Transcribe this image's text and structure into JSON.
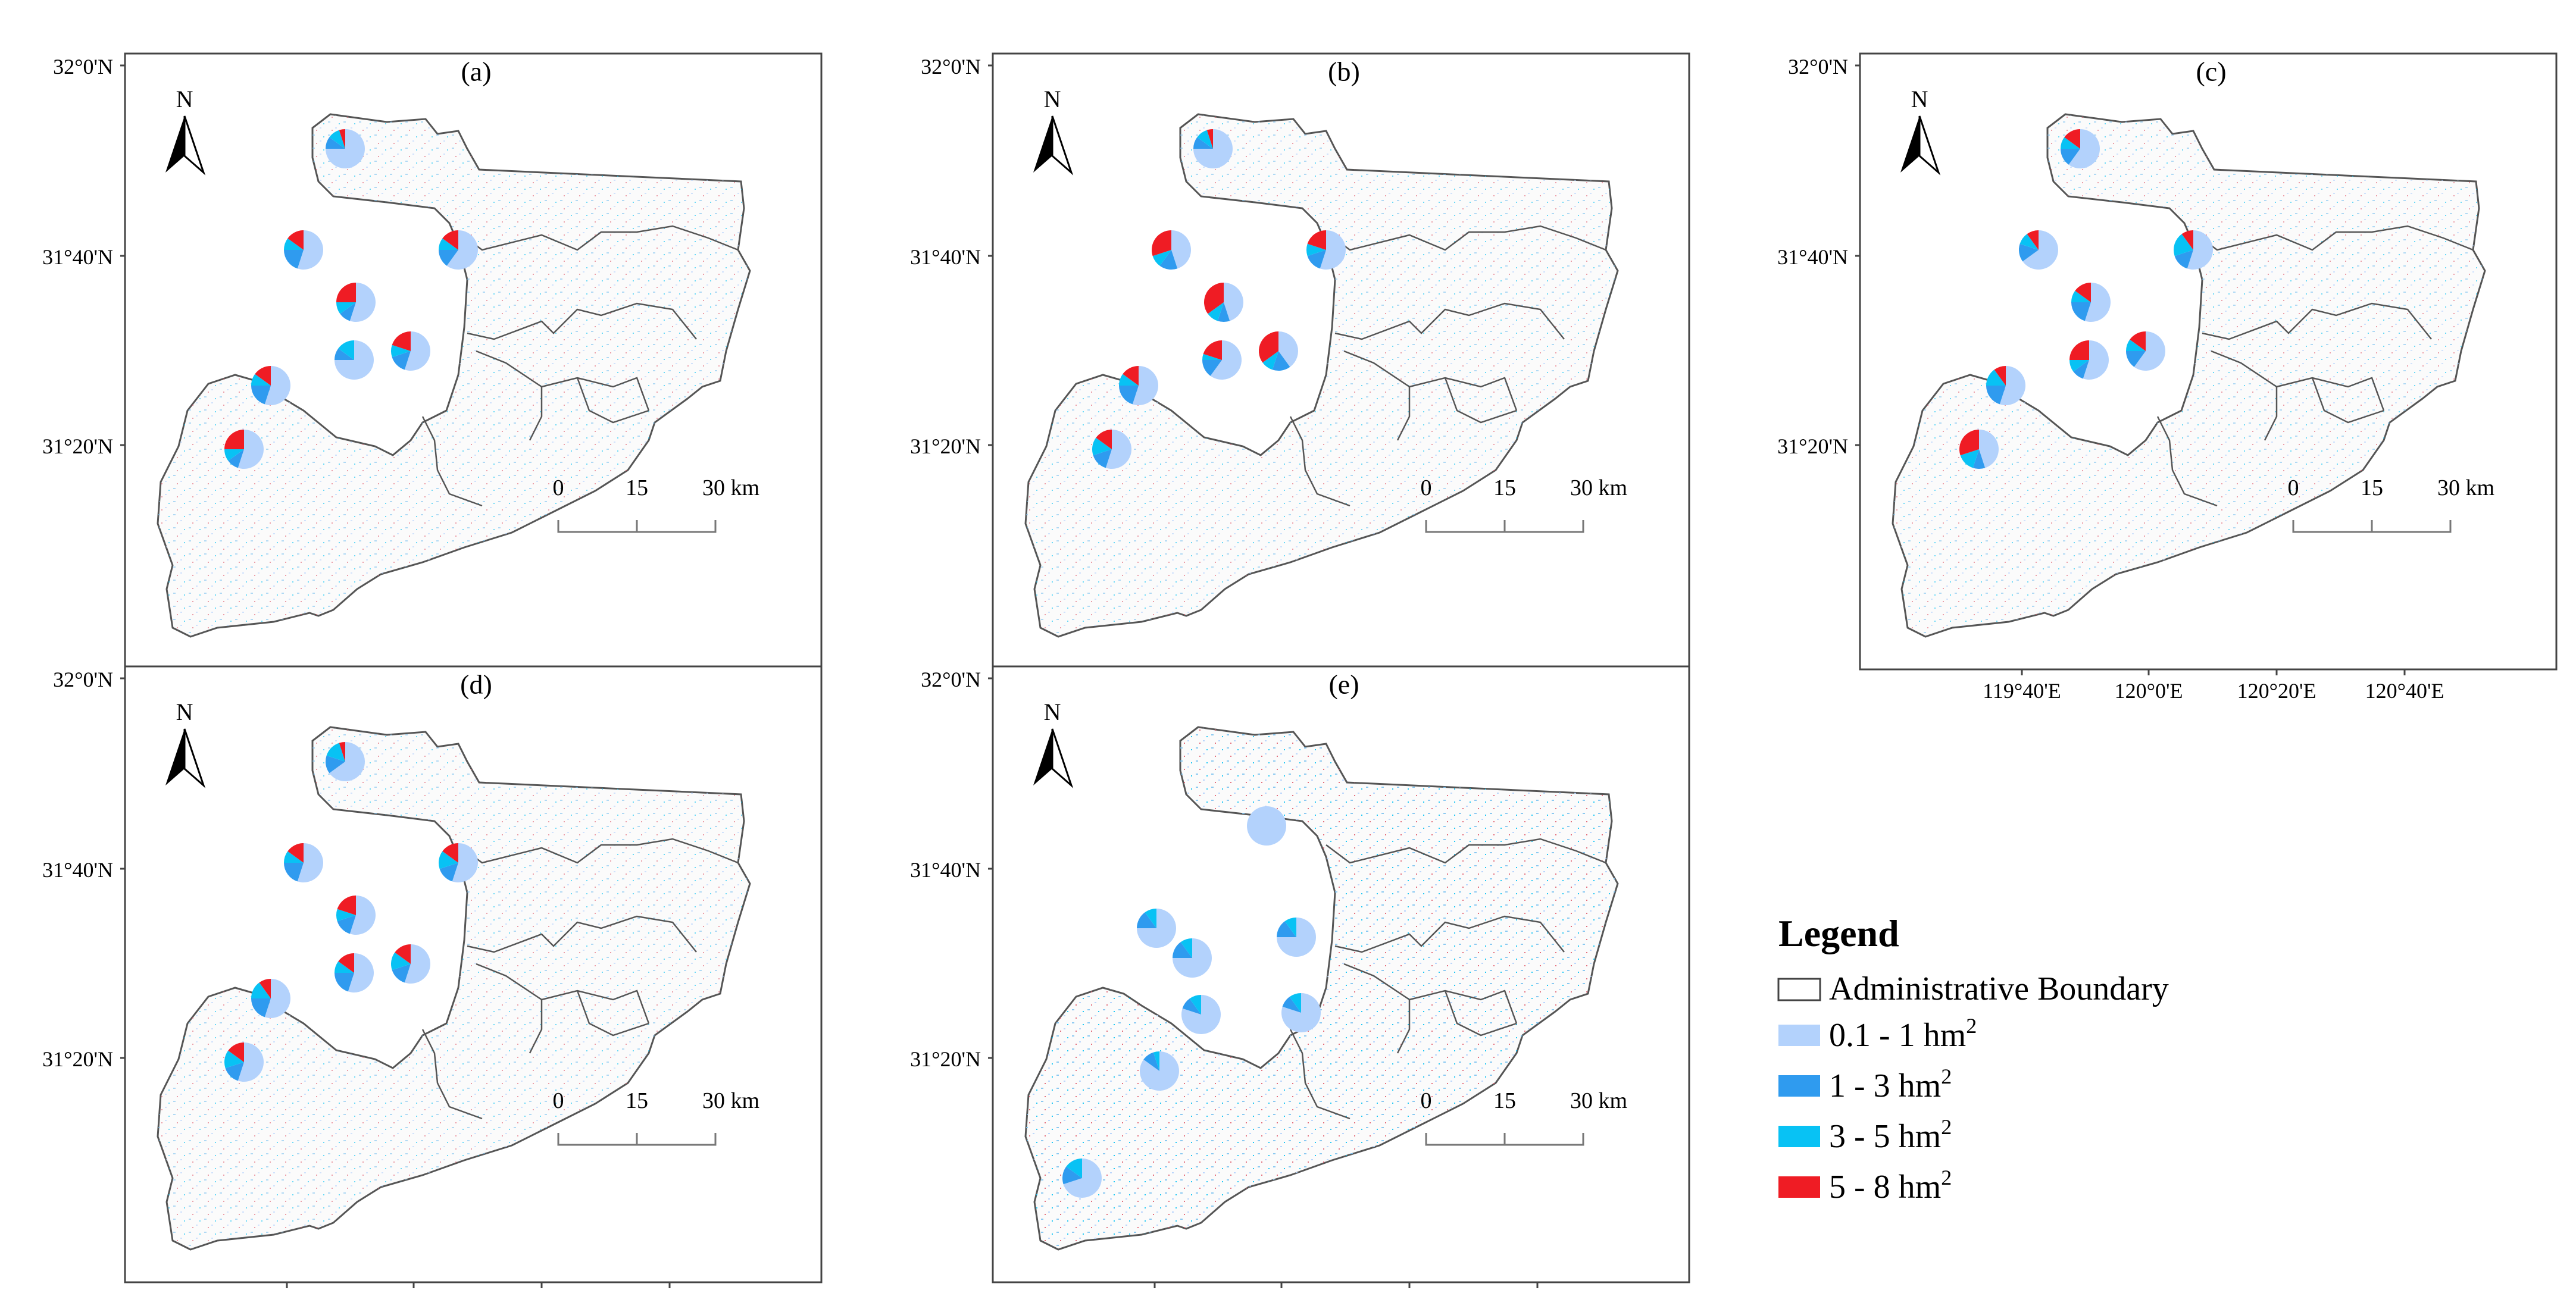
{
  "figure": {
    "lat_labels": [
      "32°0'N",
      "31°40'N",
      "31°20'N"
    ],
    "lon_labels": [
      "119°40'E",
      "120°0'E",
      "120°20'E",
      "120°40'E"
    ],
    "north_label": "N",
    "scale": {
      "ticks": [
        "0",
        "15",
        "30 km"
      ]
    },
    "colors": {
      "class1": "#b3d2fc",
      "class2": "#2f9bef",
      "class3": "#08c2f4",
      "class4": "#ef1c24",
      "boundary": "#555555"
    }
  },
  "panels": [
    {
      "label": "(a)",
      "pies": [
        {
          "site": "north",
          "values": [
            75,
            10,
            10,
            5
          ]
        },
        {
          "site": "west-mid",
          "values": [
            55,
            20,
            10,
            15
          ]
        },
        {
          "site": "east",
          "values": [
            60,
            15,
            10,
            15
          ]
        },
        {
          "site": "center",
          "values": [
            55,
            10,
            10,
            25
          ]
        },
        {
          "site": "south-center",
          "values": [
            75,
            10,
            15,
            0
          ]
        },
        {
          "site": "southeast",
          "values": [
            55,
            15,
            10,
            20
          ]
        },
        {
          "site": "southwest",
          "values": [
            55,
            20,
            10,
            15
          ]
        },
        {
          "site": "far-southwest",
          "values": [
            55,
            10,
            10,
            25
          ]
        }
      ]
    },
    {
      "label": "(b)",
      "pies": [
        {
          "site": "north",
          "values": [
            75,
            10,
            10,
            5
          ]
        },
        {
          "site": "west-mid",
          "values": [
            45,
            15,
            10,
            30
          ]
        },
        {
          "site": "east",
          "values": [
            55,
            15,
            10,
            20
          ]
        },
        {
          "site": "center",
          "values": [
            45,
            10,
            10,
            35
          ]
        },
        {
          "site": "south-center",
          "values": [
            60,
            15,
            5,
            20
          ]
        },
        {
          "site": "southeast",
          "values": [
            40,
            15,
            10,
            35
          ]
        },
        {
          "site": "southwest",
          "values": [
            55,
            20,
            10,
            15
          ]
        },
        {
          "site": "far-southwest",
          "values": [
            55,
            15,
            15,
            15
          ]
        }
      ]
    },
    {
      "label": "(c)",
      "pies": [
        {
          "site": "north",
          "values": [
            60,
            15,
            10,
            15
          ]
        },
        {
          "site": "west-mid",
          "values": [
            65,
            15,
            10,
            10
          ]
        },
        {
          "site": "east",
          "values": [
            55,
            15,
            20,
            10
          ]
        },
        {
          "site": "center",
          "values": [
            55,
            20,
            10,
            15
          ]
        },
        {
          "site": "south-center",
          "values": [
            55,
            10,
            10,
            25
          ]
        },
        {
          "site": "southeast",
          "values": [
            60,
            15,
            10,
            15
          ]
        },
        {
          "site": "southwest",
          "values": [
            55,
            20,
            15,
            10
          ]
        },
        {
          "site": "far-southwest",
          "values": [
            45,
            10,
            15,
            30
          ]
        }
      ]
    },
    {
      "label": "(d)",
      "pies": [
        {
          "site": "north",
          "values": [
            65,
            15,
            15,
            5
          ]
        },
        {
          "site": "west-mid",
          "values": [
            55,
            20,
            10,
            15
          ]
        },
        {
          "site": "east",
          "values": [
            55,
            15,
            15,
            15
          ]
        },
        {
          "site": "center",
          "values": [
            55,
            15,
            10,
            20
          ]
        },
        {
          "site": "south-center",
          "values": [
            55,
            20,
            10,
            15
          ]
        },
        {
          "site": "southeast",
          "values": [
            55,
            15,
            15,
            15
          ]
        },
        {
          "site": "southwest",
          "values": [
            55,
            20,
            15,
            10
          ]
        },
        {
          "site": "far-southwest",
          "values": [
            55,
            15,
            15,
            15
          ]
        }
      ]
    },
    {
      "label": "(e)",
      "pies": [
        {
          "site": "north",
          "values": [
            100,
            0,
            0,
            0
          ]
        },
        {
          "site": "west-mid",
          "values": [
            75,
            15,
            10,
            0
          ]
        },
        {
          "site": "east",
          "values": [
            75,
            15,
            10,
            0
          ]
        },
        {
          "site": "center",
          "values": [
            75,
            15,
            10,
            0
          ]
        },
        {
          "site": "south-center",
          "values": [
            80,
            10,
            10,
            0
          ]
        },
        {
          "site": "southeast",
          "values": [
            80,
            10,
            10,
            0
          ]
        },
        {
          "site": "southwest",
          "values": [
            85,
            10,
            5,
            0
          ]
        },
        {
          "site": "far-southwest",
          "values": [
            70,
            15,
            15,
            0
          ]
        }
      ]
    }
  ],
  "legend": {
    "title": "Legend",
    "boundary_label": "Administrative Boundary",
    "items": [
      {
        "range": "0.1 - 1 hm",
        "sup": "2"
      },
      {
        "range": "1 - 3 hm",
        "sup": "2"
      },
      {
        "range": "3 - 5 hm",
        "sup": "2"
      },
      {
        "range": "5 - 8 hm",
        "sup": "2"
      }
    ]
  }
}
